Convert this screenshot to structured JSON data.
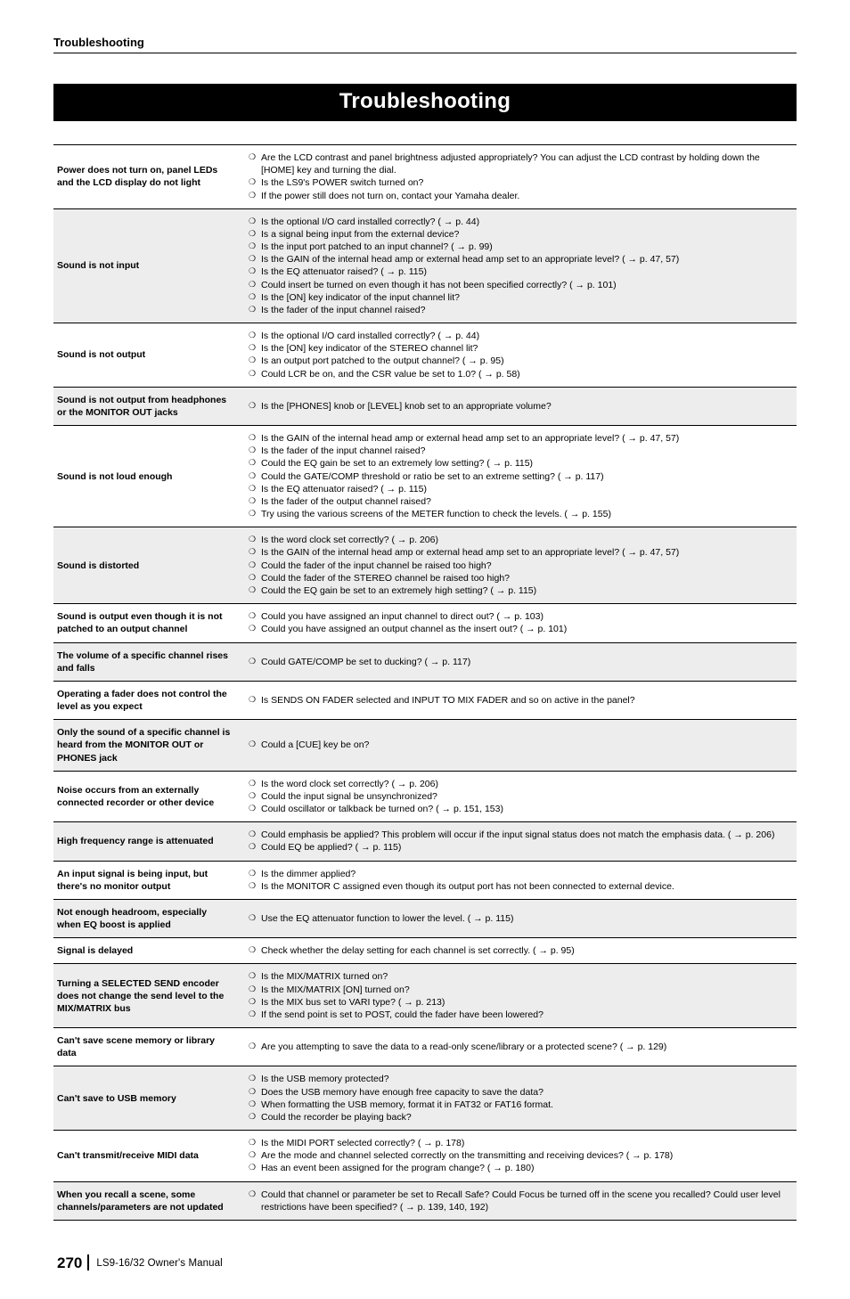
{
  "running_head": "Troubleshooting",
  "chapter_title": "Troubleshooting",
  "rows": [
    {
      "symptom": "Power does not turn on, panel LEDs and the LCD display do not light",
      "causes": [
        "Are the LCD contrast and panel brightness adjusted appropriately? You can adjust the LCD contrast by holding down the [HOME] key and turning the dial.",
        "Is the LS9's POWER switch turned on?",
        "If the power still does not turn on, contact your Yamaha dealer."
      ]
    },
    {
      "symptom": "Sound is not input",
      "causes": [
        "Is the optional I/O card installed correctly? ( → p. 44)",
        "Is a signal being input from the external device?",
        "Is the input port patched to an input channel? ( → p. 99)",
        "Is the GAIN of the internal head amp or external head amp set to an appropriate level? ( → p. 47, 57)",
        "Is the EQ attenuator raised? ( → p. 115)",
        "Could insert be turned on even though it has not been specified correctly? ( → p. 101)",
        "Is the [ON] key indicator of the input channel lit?",
        "Is the fader of the input channel raised?"
      ]
    },
    {
      "symptom": "Sound is not output",
      "causes": [
        "Is the optional I/O card installed correctly? ( → p. 44)",
        "Is the [ON] key indicator of the STEREO channel lit?",
        "Is an output port patched to the output channel? ( → p. 95)",
        "Could LCR be on, and the CSR value be set to 1.0? ( → p. 58)"
      ]
    },
    {
      "symptom": "Sound is not output from headphones or the MONITOR OUT jacks",
      "causes": [
        "Is the [PHONES] knob or [LEVEL] knob set to an appropriate volume?"
      ]
    },
    {
      "symptom": "Sound is not loud enough",
      "causes": [
        "Is the GAIN of the internal head amp or external head amp set to an appropriate level? ( → p. 47, 57)",
        "Is the fader of the input channel raised?",
        "Could the EQ gain be set to an extremely low setting? ( → p. 115)",
        "Could the GATE/COMP threshold or ratio be set to an extreme setting? ( → p. 117)",
        "Is the EQ attenuator raised? ( → p. 115)",
        "Is the fader of the output channel raised?",
        "Try using the various screens of the METER function to check the levels. ( → p. 155)"
      ]
    },
    {
      "symptom": "Sound is distorted",
      "causes": [
        "Is the word clock set correctly? ( → p. 206)",
        "Is the GAIN of the internal head amp or external head amp set to an appropriate level? ( → p. 47, 57)",
        "Could the fader of the input channel be raised too high?",
        "Could the fader of the STEREO channel be raised too high?",
        "Could the EQ gain be set to an extremely high setting? ( → p. 115)"
      ]
    },
    {
      "symptom": "Sound is output even though it is not patched to an output channel",
      "causes": [
        "Could you have assigned an input channel to direct out? ( → p. 103)",
        "Could you have assigned an output channel as the insert out? ( → p. 101)"
      ]
    },
    {
      "symptom": "The volume of a specific channel rises and falls",
      "causes": [
        "Could GATE/COMP be set to ducking? ( → p. 117)"
      ]
    },
    {
      "symptom": "Operating a fader does not control the level as you expect",
      "causes": [
        "Is SENDS ON FADER selected and INPUT TO MIX FADER and so on active in the panel?"
      ]
    },
    {
      "symptom": "Only the sound of a specific channel is heard from the MONITOR OUT or PHONES jack",
      "causes": [
        "Could a [CUE] key be on?"
      ]
    },
    {
      "symptom": "Noise occurs from an externally connected recorder or other device",
      "causes": [
        "Is the word clock set correctly? ( → p. 206)",
        "Could the input signal be unsynchronized?",
        "Could oscillator or talkback be turned on? ( → p. 151, 153)"
      ]
    },
    {
      "symptom": "High frequency range is attenuated",
      "causes": [
        "Could emphasis be applied? This problem will occur if the input signal status does not match the emphasis data. ( → p. 206)",
        "Could EQ be applied? ( → p. 115)"
      ]
    },
    {
      "symptom": "An input signal is being input, but there's no monitor output",
      "causes": [
        "Is the dimmer applied?",
        "Is the MONITOR C assigned even though its output port has not been connected to external device."
      ]
    },
    {
      "symptom": "Not enough headroom, especially when EQ boost is applied",
      "causes": [
        "Use the EQ attenuator function to lower the level. ( → p. 115)"
      ]
    },
    {
      "symptom": "Signal is delayed",
      "causes": [
        "Check whether the delay setting for each channel is set correctly. ( → p. 95)"
      ]
    },
    {
      "symptom": "Turning a SELECTED SEND encoder does not change the send level to the MIX/MATRIX bus",
      "causes": [
        "Is the MIX/MATRIX turned on?",
        "Is the MIX/MATRIX [ON] turned on?",
        "Is the MIX bus set to VARI type? ( → p. 213)",
        "If the send point is set to POST, could the fader have been lowered?"
      ]
    },
    {
      "symptom": "Can't save scene memory or library data",
      "causes": [
        "Are you attempting to save the data to a read-only scene/library or a protected scene? ( → p. 129)"
      ]
    },
    {
      "symptom": "Can't save to USB memory",
      "causes": [
        "Is the USB memory protected?",
        "Does the USB memory have enough free capacity to save the data?",
        "When formatting the USB memory, format it in FAT32 or FAT16 format.",
        "Could the recorder be playing back?"
      ]
    },
    {
      "symptom": "Can't transmit/receive MIDI data",
      "causes": [
        "Is the MIDI PORT selected correctly? ( → p. 178)",
        "Are the mode and channel selected correctly on the transmitting and receiving devices? ( → p. 178)",
        "Has an event been assigned for the program change? ( → p. 180)"
      ]
    },
    {
      "symptom": "When you recall a scene, some channels/parameters are not updated",
      "causes": [
        "Could that channel or parameter be set to Recall Safe? Could Focus be turned off in the scene you recalled? Could user level restrictions have been specified? ( → p. 139, 140, 192)"
      ]
    }
  ],
  "footer": {
    "page_number": "270",
    "manual": "LS9-16/32  Owner's Manual"
  }
}
